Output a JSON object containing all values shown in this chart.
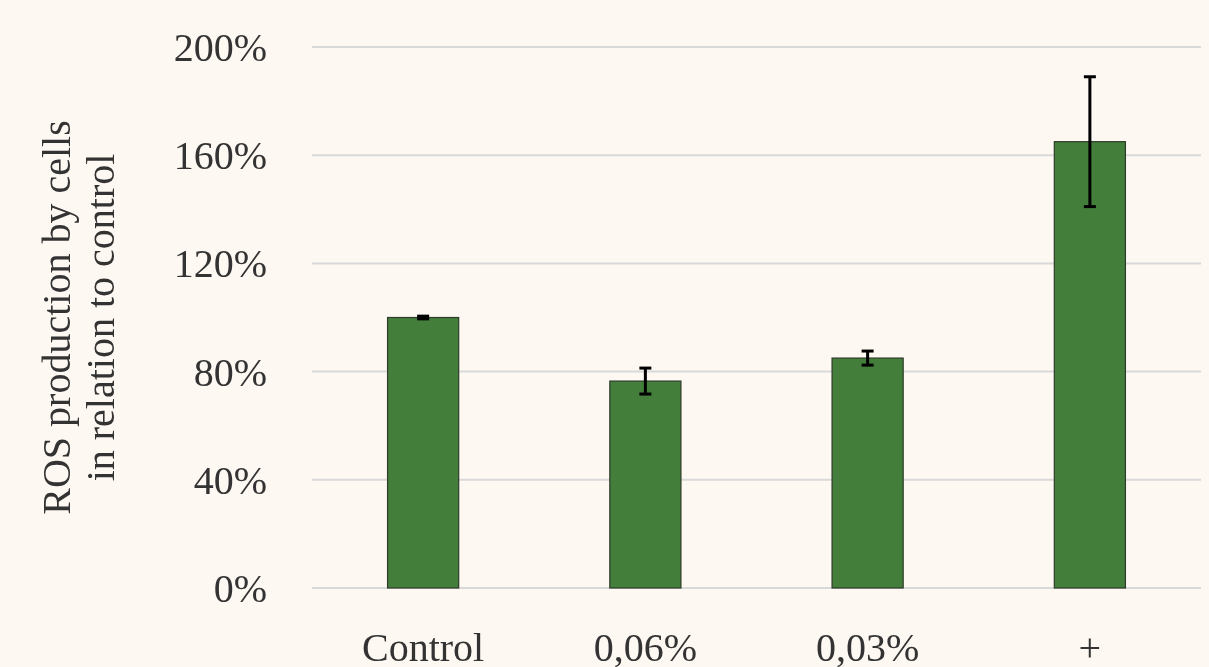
{
  "chart_data": {
    "type": "bar",
    "ylabel": "ROS production by cells\nin relation to control",
    "categories": [
      "Control",
      "0,06%",
      "0,03%",
      "+"
    ],
    "series": [
      {
        "color": "#437e3b",
        "values": [
          100,
          76.5,
          85,
          165
        ],
        "errors": [
          0.5,
          4.8,
          2.6,
          24
        ]
      }
    ],
    "ylim": [
      0,
      200
    ],
    "yticks": [
      {
        "value": 0,
        "label": "0%"
      },
      {
        "value": 40,
        "label": "40%"
      },
      {
        "value": 80,
        "label": "80%"
      },
      {
        "value": 120,
        "label": "120%"
      },
      {
        "value": 160,
        "label": "160%"
      },
      {
        "value": 200,
        "label": "200%"
      }
    ],
    "grid": "y"
  }
}
